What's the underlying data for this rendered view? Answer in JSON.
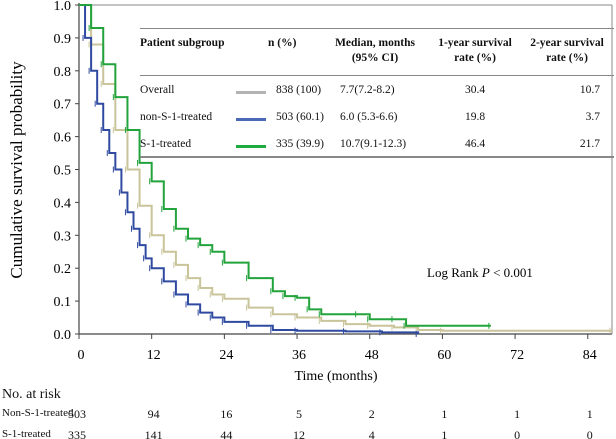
{
  "chart_data": {
    "type": "line",
    "subtype": "kaplan-meier",
    "xlabel": "Time (months)",
    "ylabel": "Cumulative survival probability",
    "xlim": [
      0,
      88
    ],
    "ylim": [
      0,
      1
    ],
    "xticks": [
      "0",
      "12",
      "24",
      "36",
      "48",
      "60",
      "72",
      "84"
    ],
    "yticks": [
      "0.0",
      "0.1",
      "0.2",
      "0.3",
      "0.4",
      "0.5",
      "0.6",
      "0.7",
      "0.8",
      "0.9",
      "1.0"
    ],
    "annotation": "Log Rank P < 0.001",
    "annotation_parts": {
      "pre": "Log Rank ",
      "p": "P",
      "post": " < 0.001"
    },
    "series": [
      {
        "name": "Overall",
        "color": "#c9c49a",
        "legend_color": "#b3b3b3",
        "x": [
          0,
          2,
          4,
          6,
          8,
          10,
          12,
          14,
          16,
          18,
          20,
          22,
          24,
          28,
          32,
          36,
          40,
          44,
          48,
          52,
          56,
          60,
          88
        ],
        "y": [
          1,
          0.88,
          0.76,
          0.62,
          0.5,
          0.39,
          0.3,
          0.25,
          0.21,
          0.17,
          0.14,
          0.12,
          0.107,
          0.08,
          0.06,
          0.05,
          0.04,
          0.03,
          0.025,
          0.02,
          0.012,
          0.01,
          0.01
        ]
      },
      {
        "name": "non-S-1-treated",
        "color": "#2f4aa0",
        "legend_color": "#4a6ab8",
        "x": [
          0,
          1,
          2,
          3,
          4,
          5,
          6,
          7,
          8,
          9,
          10,
          11,
          12,
          14,
          16,
          18,
          20,
          22,
          24,
          28,
          32,
          36,
          44,
          50,
          56
        ],
        "y": [
          1,
          0.9,
          0.8,
          0.7,
          0.62,
          0.55,
          0.5,
          0.43,
          0.37,
          0.32,
          0.27,
          0.23,
          0.2,
          0.16,
          0.12,
          0.09,
          0.065,
          0.05,
          0.037,
          0.025,
          0.012,
          0.01,
          0.008,
          0.005,
          0.0
        ]
      },
      {
        "name": "S-1-treated",
        "color": "#22a33c",
        "legend_color": "#1faa3f",
        "x": [
          0,
          2,
          4,
          6,
          8,
          10,
          12,
          14,
          16,
          18,
          20,
          22,
          24,
          28,
          32,
          34,
          36,
          38,
          40,
          46,
          48,
          52,
          54,
          68
        ],
        "y": [
          1,
          0.93,
          0.82,
          0.72,
          0.62,
          0.52,
          0.464,
          0.38,
          0.32,
          0.29,
          0.27,
          0.25,
          0.217,
          0.17,
          0.13,
          0.115,
          0.11,
          0.075,
          0.06,
          0.06,
          0.045,
          0.045,
          0.025,
          0.025
        ]
      }
    ]
  },
  "legend_table": {
    "headers": [
      "Patient subgroup",
      "n (%)",
      "Median, months (95% CI)",
      "1-year survival rate (%)",
      "2-year survival rate (%)"
    ],
    "header_lines": [
      [
        "Patient subgroup"
      ],
      [
        "n (%)"
      ],
      [
        "Median, months",
        "(95% CI)"
      ],
      [
        "1-year survival",
        "rate (%)"
      ],
      [
        "2-year survival",
        "rate (%)"
      ]
    ],
    "rows": [
      {
        "group": "Overall",
        "n": "838 (100)",
        "median": "7.7(7.2-8.2)",
        "y1": "30.4",
        "y2": "10.7"
      },
      {
        "group": "non-S-1-treated",
        "n": "503 (60.1)",
        "median": "6.0 (5.3-6.6)",
        "y1": "19.8",
        "y2": "3.7"
      },
      {
        "group": "S-1-treated",
        "n": "335 (39.9)",
        "median": "10.7(9.1-12.3)",
        "y1": "46.4",
        "y2": "21.7"
      }
    ]
  },
  "at_risk": {
    "title": "No. at risk",
    "rows": [
      {
        "label": "Non-S-1-treated",
        "values": [
          "503",
          "94",
          "16",
          "5",
          "2",
          "1",
          "1",
          "1"
        ]
      },
      {
        "label": "S-1-treated",
        "values": [
          "335",
          "141",
          "44",
          "12",
          "4",
          "1",
          "0",
          "0"
        ]
      }
    ]
  }
}
